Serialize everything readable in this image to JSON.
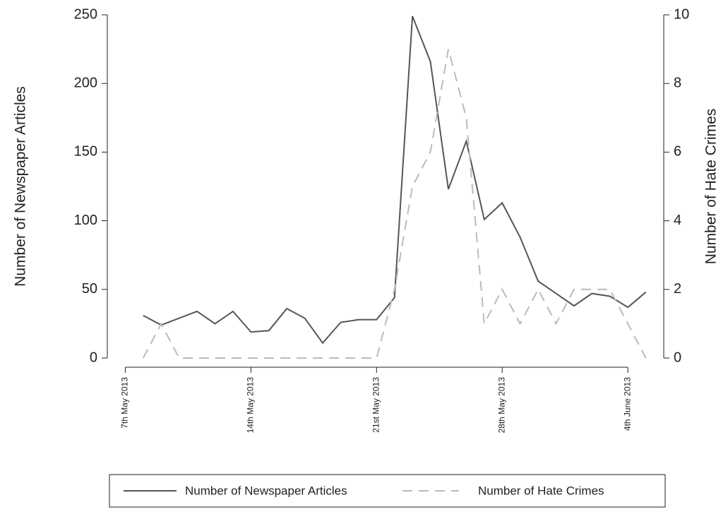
{
  "chart_data": {
    "type": "line",
    "x": [
      "2013-05-08",
      "2013-05-09",
      "2013-05-10",
      "2013-05-11",
      "2013-05-12",
      "2013-05-13",
      "2013-05-14",
      "2013-05-15",
      "2013-05-16",
      "2013-05-17",
      "2013-05-18",
      "2013-05-19",
      "2013-05-20",
      "2013-05-21",
      "2013-05-22",
      "2013-05-23",
      "2013-05-24",
      "2013-05-25",
      "2013-05-26",
      "2013-05-27",
      "2013-05-28",
      "2013-05-29",
      "2013-05-30",
      "2013-05-31",
      "2013-06-01",
      "2013-06-02",
      "2013-06-03",
      "2013-06-04",
      "2013-06-05"
    ],
    "series": [
      {
        "name": "Number of Newspaper Articles",
        "color": "#555555",
        "style": "solid",
        "values": [
          31,
          24,
          29,
          34,
          25,
          34,
          19,
          20,
          36,
          29,
          11,
          26,
          28,
          28,
          44,
          249,
          216,
          123,
          158,
          101,
          113,
          88,
          56,
          47,
          38,
          47,
          45,
          37,
          48
        ]
      },
      {
        "name": "Number of Hate Crimes",
        "color": "#bbbbbb",
        "style": "dashed",
        "axis": "y2",
        "values": [
          0,
          1,
          0,
          0,
          0,
          0,
          0,
          0,
          0,
          0,
          0,
          0,
          0,
          0,
          2,
          5,
          6,
          9,
          7,
          1,
          2,
          1,
          2,
          1,
          2,
          2,
          2,
          1,
          0
        ]
      }
    ],
    "ylabel": "Number of Newspaper Articles",
    "y2label": "Number of Hate Crimes",
    "ylim": [
      0,
      250
    ],
    "yticks": [
      0,
      50,
      100,
      150,
      200,
      250
    ],
    "y2lim": [
      0,
      10
    ],
    "y2ticks": [
      0,
      2,
      4,
      6,
      8,
      10
    ],
    "xlim": [
      "2013-05-06",
      "2013-06-06"
    ],
    "xticks": [
      {
        "value": "2013-05-07",
        "label": "7th May 2013"
      },
      {
        "value": "2013-05-14",
        "label": "14th May 2013"
      },
      {
        "value": "2013-05-21",
        "label": "21st May 2013"
      },
      {
        "value": "2013-05-28",
        "label": "28th May 2013"
      },
      {
        "value": "2013-06-04",
        "label": "4th June 2013"
      }
    ],
    "legend": "bottom"
  }
}
